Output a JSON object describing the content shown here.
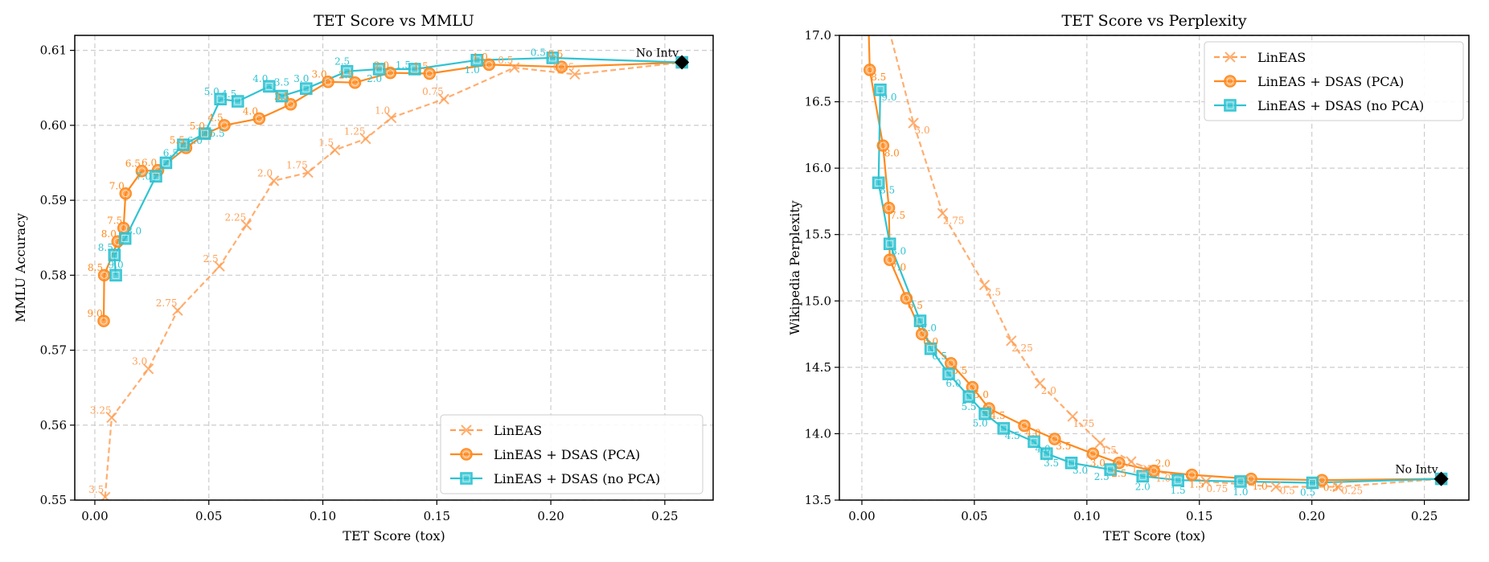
{
  "colors": {
    "lineas": "#ffa057",
    "pca": "#ff8a1f",
    "nopca": "#2fc3d2",
    "grid": "#cccccc",
    "nointv": "#000000"
  },
  "chart_data": [
    {
      "type": "line",
      "title": "TET Score vs MMLU",
      "xlabel": "TET Score (tox)",
      "ylabel": "MMLU Accuracy",
      "xlim": [
        -0.0088,
        0.2712
      ],
      "ylim": [
        0.55,
        0.612
      ],
      "xticks": [
        0.0,
        0.05,
        0.1,
        0.15,
        0.2,
        0.25
      ],
      "xtick_labels": [
        "0.00",
        "0.05",
        "0.10",
        "0.15",
        "0.20",
        "0.25"
      ],
      "yticks": [
        0.55,
        0.56,
        0.57,
        0.58,
        0.59,
        0.6,
        0.61
      ],
      "ytick_labels": [
        "0.55",
        "0.56",
        "0.57",
        "0.58",
        "0.59",
        "0.60",
        "0.61"
      ],
      "grid": true,
      "legend": "bottom-right",
      "point_label_position": "upper-left",
      "series": [
        {
          "name": "LinEAS",
          "style": "dashed",
          "marker": "x",
          "points": [
            {
              "x": 0.0045,
              "y": 0.5504,
              "label": "3.5"
            },
            {
              "x": 0.0074,
              "y": 0.561,
              "label": "3.25"
            },
            {
              "x": 0.0235,
              "y": 0.5675,
              "label": "3.0"
            },
            {
              "x": 0.0363,
              "y": 0.5753,
              "label": "2.75"
            },
            {
              "x": 0.0547,
              "y": 0.5812,
              "label": "2.5"
            },
            {
              "x": 0.0665,
              "y": 0.5867,
              "label": "2.25"
            },
            {
              "x": 0.0785,
              "y": 0.5926,
              "label": "2.0"
            },
            {
              "x": 0.0935,
              "y": 0.5937,
              "label": "1.75"
            },
            {
              "x": 0.1053,
              "y": 0.5967,
              "label": "1.5"
            },
            {
              "x": 0.1188,
              "y": 0.5982,
              "label": "1.25"
            },
            {
              "x": 0.13,
              "y": 0.601,
              "label": "1.0"
            },
            {
              "x": 0.1531,
              "y": 0.6035,
              "label": "0.75"
            },
            {
              "x": 0.184,
              "y": 0.6077,
              "label": "0.5"
            },
            {
              "x": 0.2105,
              "y": 0.6068,
              "label": "0.25"
            },
            {
              "x": 0.2575,
              "y": 0.6084,
              "label": ""
            }
          ]
        },
        {
          "name": "LinEAS + DSAS (PCA)",
          "style": "solid",
          "marker": "circle",
          "points": [
            {
              "x": 0.0039,
              "y": 0.5739,
              "label": "9.0"
            },
            {
              "x": 0.0041,
              "y": 0.58,
              "label": "8.5"
            },
            {
              "x": 0.01,
              "y": 0.5845,
              "label": "8.0"
            },
            {
              "x": 0.0126,
              "y": 0.5863,
              "label": "7.5"
            },
            {
              "x": 0.0135,
              "y": 0.5909,
              "label": "7.0"
            },
            {
              "x": 0.0206,
              "y": 0.5939,
              "label": "6.5"
            },
            {
              "x": 0.0277,
              "y": 0.594,
              "label": "6.0"
            },
            {
              "x": 0.04,
              "y": 0.597,
              "label": "5.5"
            },
            {
              "x": 0.0488,
              "y": 0.5989,
              "label": "5.0"
            },
            {
              "x": 0.0568,
              "y": 0.6,
              "label": "4.5"
            },
            {
              "x": 0.0721,
              "y": 0.6009,
              "label": "4.0"
            },
            {
              "x": 0.0859,
              "y": 0.6028,
              "label": "3.5"
            },
            {
              "x": 0.1023,
              "y": 0.6058,
              "label": "3.0"
            },
            {
              "x": 0.1141,
              "y": 0.6057,
              "label": "2.5"
            },
            {
              "x": 0.1296,
              "y": 0.607,
              "label": "2.0"
            },
            {
              "x": 0.1468,
              "y": 0.6069,
              "label": "1.5"
            },
            {
              "x": 0.1729,
              "y": 0.6081,
              "label": "1.0"
            },
            {
              "x": 0.2047,
              "y": 0.6078,
              "label": "0.5"
            },
            {
              "x": 0.2575,
              "y": 0.6084,
              "label": ""
            }
          ]
        },
        {
          "name": "LinEAS + DSAS (no PCA)",
          "style": "solid",
          "marker": "square",
          "points": [
            {
              "x": 0.0092,
              "y": 0.58,
              "label": "9.0"
            },
            {
              "x": 0.0086,
              "y": 0.5827,
              "label": "8.5"
            },
            {
              "x": 0.0133,
              "y": 0.5849,
              "label": "8.0"
            },
            {
              "x": 0.0268,
              "y": 0.5932,
              "label": "7.0"
            },
            {
              "x": 0.0312,
              "y": 0.595,
              "label": "6.5"
            },
            {
              "x": 0.0388,
              "y": 0.5974,
              "label": "6.0"
            },
            {
              "x": 0.0482,
              "y": 0.5989,
              "label": "5.5"
            },
            {
              "x": 0.0551,
              "y": 0.6035,
              "label": "5.0"
            },
            {
              "x": 0.0627,
              "y": 0.6032,
              "label": "4.5"
            },
            {
              "x": 0.0765,
              "y": 0.6052,
              "label": "4.0"
            },
            {
              "x": 0.082,
              "y": 0.6039,
              "label": "3.5"
            },
            {
              "x": 0.0927,
              "y": 0.6049,
              "label": "3.0"
            },
            {
              "x": 0.1106,
              "y": 0.6072,
              "label": "2.5"
            },
            {
              "x": 0.1247,
              "y": 0.6075,
              "label": "2.0"
            },
            {
              "x": 0.1403,
              "y": 0.6075,
              "label": "1.5"
            },
            {
              "x": 0.1676,
              "y": 0.6087,
              "label": "1.0"
            },
            {
              "x": 0.2008,
              "y": 0.609,
              "label": "0.5"
            },
            {
              "x": 0.2575,
              "y": 0.6084,
              "label": ""
            }
          ]
        }
      ],
      "annotation": {
        "text": "No Intv",
        "x": 0.2575,
        "y": 0.6084
      }
    },
    {
      "type": "line",
      "title": "TET Score vs Perplexity",
      "xlabel": "TET Score (tox)",
      "ylabel": "Wikipedia Perplexity",
      "xlim": [
        -0.01,
        0.2698
      ],
      "ylim": [
        13.5,
        17.0
      ],
      "xticks": [
        0.0,
        0.05,
        0.1,
        0.15,
        0.2,
        0.25
      ],
      "xtick_labels": [
        "0.00",
        "0.05",
        "0.10",
        "0.15",
        "0.20",
        "0.25"
      ],
      "yticks": [
        13.5,
        14.0,
        14.5,
        15.0,
        15.5,
        16.0,
        16.5,
        17.0
      ],
      "ytick_labels": [
        "13.5",
        "14.0",
        "14.5",
        "15.0",
        "15.5",
        "16.0",
        "16.5",
        "17.0"
      ],
      "grid": true,
      "legend": "top-right",
      "point_label_position": "lower-right",
      "series": [
        {
          "name": "LinEAS",
          "style": "dashed",
          "marker": "x",
          "points": [
            {
              "x": 0.0229,
              "y": 16.34,
              "label": "3.0"
            },
            {
              "x": 0.0359,
              "y": 15.66,
              "label": "2.75"
            },
            {
              "x": 0.0545,
              "y": 15.12,
              "label": "2.5"
            },
            {
              "x": 0.0664,
              "y": 14.7,
              "label": "2.25"
            },
            {
              "x": 0.0791,
              "y": 14.38,
              "label": "2.0"
            },
            {
              "x": 0.0937,
              "y": 14.13,
              "label": "1.75"
            },
            {
              "x": 0.1059,
              "y": 13.93,
              "label": "1.5"
            },
            {
              "x": 0.1197,
              "y": 13.79,
              "label": "1.25"
            },
            {
              "x": 0.13,
              "y": 13.72,
              "label": "1.0"
            },
            {
              "x": 0.153,
              "y": 13.64,
              "label": "0.75"
            },
            {
              "x": 0.184,
              "y": 13.6,
              "label": "0.5"
            },
            {
              "x": 0.2115,
              "y": 13.6,
              "label": "0.25"
            },
            {
              "x": 0.2575,
              "y": 13.66,
              "label": ""
            }
          ]
        },
        {
          "name": "LinEAS + DSAS (PCA)",
          "style": "solid",
          "marker": "circle",
          "points": [
            {
              "x": 0.0035,
              "y": 16.74,
              "label": "8.5"
            },
            {
              "x": 0.0094,
              "y": 16.17,
              "label": "8.0"
            },
            {
              "x": 0.012,
              "y": 15.7,
              "label": "7.5"
            },
            {
              "x": 0.0124,
              "y": 15.31,
              "label": "7.0"
            },
            {
              "x": 0.0198,
              "y": 15.02,
              "label": "6.5"
            },
            {
              "x": 0.0267,
              "y": 14.75,
              "label": "6.0"
            },
            {
              "x": 0.0396,
              "y": 14.53,
              "label": "5.5"
            },
            {
              "x": 0.0491,
              "y": 14.35,
              "label": "5.0"
            },
            {
              "x": 0.0565,
              "y": 14.19,
              "label": "4.5"
            },
            {
              "x": 0.0722,
              "y": 14.06,
              "label": "4.0"
            },
            {
              "x": 0.0857,
              "y": 13.96,
              "label": "3.5"
            },
            {
              "x": 0.1027,
              "y": 13.85,
              "label": "3.0"
            },
            {
              "x": 0.1143,
              "y": 13.78,
              "label": "2.5"
            },
            {
              "x": 0.1298,
              "y": 13.72,
              "label": "2.0"
            },
            {
              "x": 0.1467,
              "y": 13.69,
              "label": "1.5"
            },
            {
              "x": 0.173,
              "y": 13.66,
              "label": "1.0"
            },
            {
              "x": 0.2045,
              "y": 13.65,
              "label": "0.5"
            },
            {
              "x": 0.2575,
              "y": 13.66,
              "label": ""
            }
          ]
        },
        {
          "name": "LinEAS + DSAS (no PCA)",
          "style": "solid",
          "marker": "square",
          "points": [
            {
              "x": 0.0082,
              "y": 16.59,
              "label": "9.0"
            },
            {
              "x": 0.0074,
              "y": 15.89,
              "label": "8.5"
            },
            {
              "x": 0.0124,
              "y": 15.43,
              "label": "8.0"
            },
            {
              "x": 0.0259,
              "y": 14.85,
              "label": "7.0"
            },
            {
              "x": 0.0306,
              "y": 14.64,
              "label": "6.5"
            },
            {
              "x": 0.0386,
              "y": 14.45,
              "label": "6.0"
            },
            {
              "x": 0.0476,
              "y": 14.28,
              "label": "5.5"
            },
            {
              "x": 0.0547,
              "y": 14.15,
              "label": "5.0"
            },
            {
              "x": 0.063,
              "y": 14.04,
              "label": "4.5"
            },
            {
              "x": 0.0765,
              "y": 13.94,
              "label": "4.0"
            },
            {
              "x": 0.0821,
              "y": 13.85,
              "label": "3.5"
            },
            {
              "x": 0.0931,
              "y": 13.78,
              "label": "3.0"
            },
            {
              "x": 0.1105,
              "y": 13.73,
              "label": "2.5"
            },
            {
              "x": 0.1248,
              "y": 13.68,
              "label": "2.0"
            },
            {
              "x": 0.1405,
              "y": 13.65,
              "label": "1.5"
            },
            {
              "x": 0.1683,
              "y": 13.64,
              "label": "1.0"
            },
            {
              "x": 0.2003,
              "y": 13.63,
              "label": "0.5"
            },
            {
              "x": 0.2575,
              "y": 13.66,
              "label": ""
            }
          ]
        }
      ],
      "annotation": {
        "text": "No Intv",
        "x": 0.2575,
        "y": 13.66
      }
    }
  ]
}
